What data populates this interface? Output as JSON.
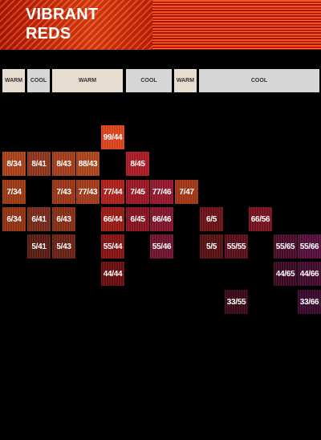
{
  "banner": {
    "title_line1": "VIBRANT",
    "title_line2": "REDS"
  },
  "tone_headers": [
    "WARM",
    "COOL",
    "WARM",
    "COOL",
    "WARM",
    "COOL"
  ],
  "swatches": [
    {
      "label": "99/44",
      "color": "#e2461e"
    },
    {
      "label": "8/34",
      "color": "#b0441c"
    },
    {
      "label": "8/41",
      "color": "#93381e"
    },
    {
      "label": "8/43",
      "color": "#a8401c"
    },
    {
      "label": "88/43",
      "color": "#b0481e"
    },
    {
      "label": "8/45",
      "color": "#b01c26"
    },
    {
      "label": "7/34",
      "color": "#a23c16"
    },
    {
      "label": "7/43",
      "color": "#a03818"
    },
    {
      "label": "77/43",
      "color": "#a83c1c"
    },
    {
      "label": "77/44",
      "color": "#b4221c"
    },
    {
      "label": "7/45",
      "color": "#a01826"
    },
    {
      "label": "77/46",
      "color": "#9a1830"
    },
    {
      "label": "7/47",
      "color": "#a83818"
    },
    {
      "label": "6/34",
      "color": "#983414"
    },
    {
      "label": "6/41",
      "color": "#7c2c1c"
    },
    {
      "label": "6/43",
      "color": "#8c3016"
    },
    {
      "label": "66/44",
      "color": "#9e1c16"
    },
    {
      "label": "6/45",
      "color": "#8c1422"
    },
    {
      "label": "66/46",
      "color": "#88162e"
    },
    {
      "label": "6/5",
      "color": "#6e1418"
    },
    {
      "label": "66/56",
      "color": "#7c1420"
    },
    {
      "label": "5/41",
      "color": "#5c1e16"
    },
    {
      "label": "5/43",
      "color": "#6c2416"
    },
    {
      "label": "55/44",
      "color": "#8a1414"
    },
    {
      "label": "55/46",
      "color": "#741430"
    },
    {
      "label": "5/5",
      "color": "#5a1216"
    },
    {
      "label": "55/55",
      "color": "#5c0f1c"
    },
    {
      "label": "55/65",
      "color": "#4c0c2a"
    },
    {
      "label": "55/66",
      "color": "#56103e"
    },
    {
      "label": "44/44",
      "color": "#6a0e10"
    },
    {
      "label": "44/65",
      "color": "#3e0a24"
    },
    {
      "label": "44/66",
      "color": "#440c30"
    },
    {
      "label": "33/55",
      "color": "#3a0a16"
    },
    {
      "label": "33/66",
      "color": "#3a0a30"
    }
  ]
}
